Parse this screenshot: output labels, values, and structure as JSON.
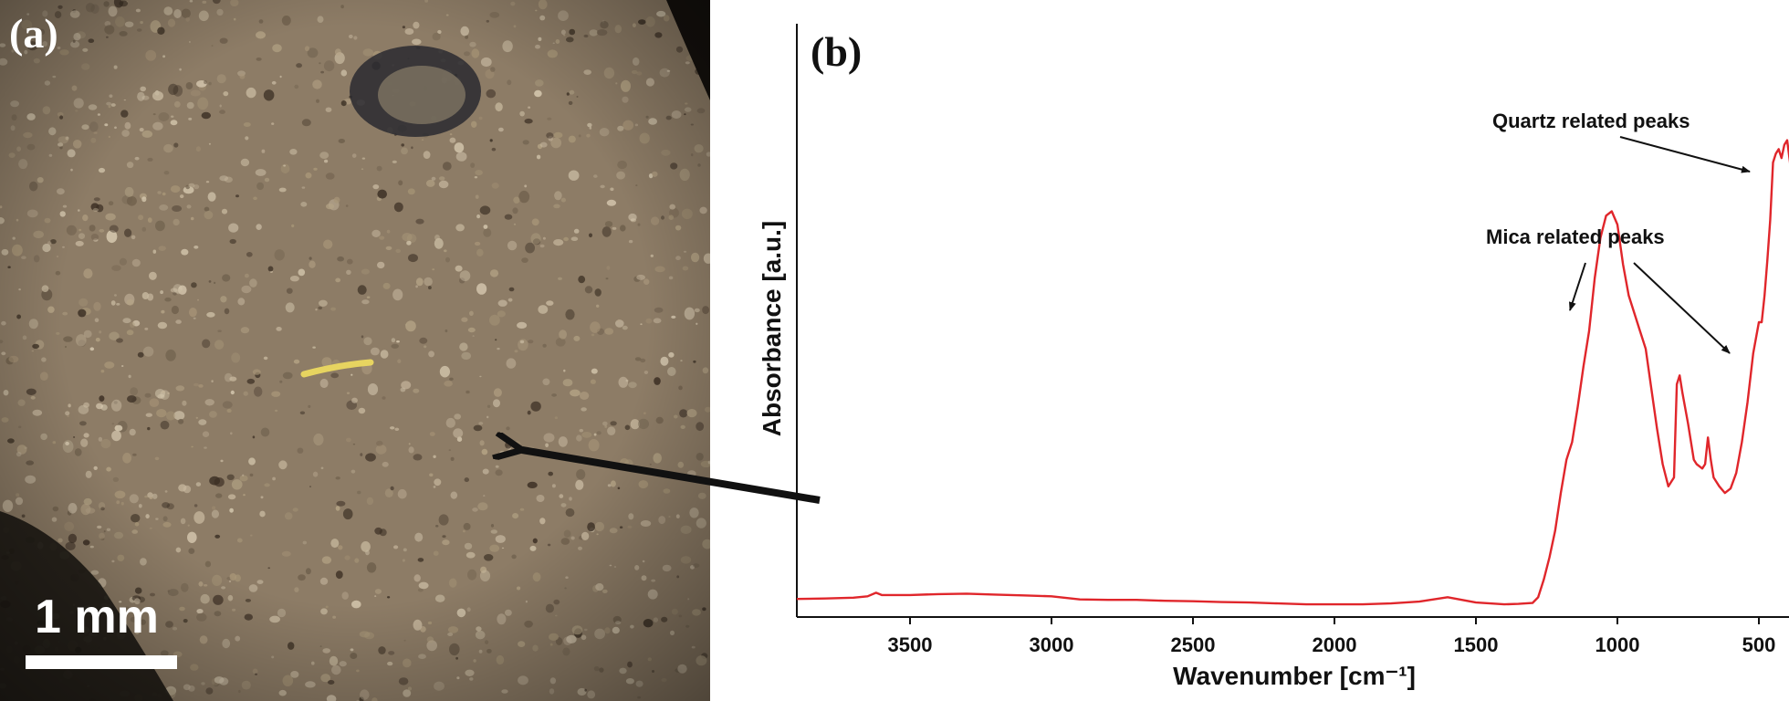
{
  "panels": {
    "a_label": "(a)",
    "b_label": "(b)"
  },
  "photo": {
    "scale_bar_label": "1 mm",
    "colors": {
      "base": "#8d7c66",
      "grain_light": "#c6b79e",
      "grain_dark": "#3b2f24",
      "fiber": "#e7d460"
    }
  },
  "chart_data": {
    "type": "line",
    "xlabel": "Wavenumber [cm⁻¹]",
    "ylabel": "Absorbance [a.u.]",
    "x_reversed": true,
    "xlim": [
      3900,
      400
    ],
    "ylim": [
      0,
      1
    ],
    "xticks": [
      3500,
      3000,
      2500,
      2000,
      1500,
      1000,
      500
    ],
    "grid": false,
    "series": [
      {
        "color": "#e0262b",
        "points": [
          [
            3900,
            0.016
          ],
          [
            3800,
            0.017
          ],
          [
            3700,
            0.019
          ],
          [
            3650,
            0.022
          ],
          [
            3620,
            0.03
          ],
          [
            3600,
            0.025
          ],
          [
            3500,
            0.025
          ],
          [
            3400,
            0.027
          ],
          [
            3300,
            0.028
          ],
          [
            3200,
            0.026
          ],
          [
            3100,
            0.024
          ],
          [
            3000,
            0.022
          ],
          [
            2900,
            0.015
          ],
          [
            2800,
            0.014
          ],
          [
            2700,
            0.014
          ],
          [
            2600,
            0.012
          ],
          [
            2500,
            0.011
          ],
          [
            2400,
            0.009
          ],
          [
            2300,
            0.008
          ],
          [
            2200,
            0.006
          ],
          [
            2100,
            0.004
          ],
          [
            2000,
            0.004
          ],
          [
            1900,
            0.004
          ],
          [
            1800,
            0.006
          ],
          [
            1700,
            0.01
          ],
          [
            1650,
            0.015
          ],
          [
            1600,
            0.02
          ],
          [
            1550,
            0.014
          ],
          [
            1500,
            0.008
          ],
          [
            1450,
            0.006
          ],
          [
            1400,
            0.004
          ],
          [
            1350,
            0.005
          ],
          [
            1300,
            0.007
          ],
          [
            1280,
            0.02
          ],
          [
            1260,
            0.06
          ],
          [
            1240,
            0.11
          ],
          [
            1220,
            0.17
          ],
          [
            1200,
            0.255
          ],
          [
            1180,
            0.33
          ],
          [
            1160,
            0.37
          ],
          [
            1140,
            0.45
          ],
          [
            1120,
            0.54
          ],
          [
            1100,
            0.62
          ],
          [
            1080,
            0.74
          ],
          [
            1060,
            0.83
          ],
          [
            1040,
            0.88
          ],
          [
            1020,
            0.89
          ],
          [
            1000,
            0.86
          ],
          [
            980,
            0.77
          ],
          [
            960,
            0.7
          ],
          [
            940,
            0.66
          ],
          [
            920,
            0.62
          ],
          [
            900,
            0.58
          ],
          [
            880,
            0.49
          ],
          [
            860,
            0.4
          ],
          [
            840,
            0.32
          ],
          [
            820,
            0.27
          ],
          [
            800,
            0.29
          ],
          [
            790,
            0.5
          ],
          [
            780,
            0.52
          ],
          [
            770,
            0.48
          ],
          [
            750,
            0.41
          ],
          [
            730,
            0.33
          ],
          [
            720,
            0.32
          ],
          [
            700,
            0.31
          ],
          [
            690,
            0.32
          ],
          [
            680,
            0.38
          ],
          [
            670,
            0.33
          ],
          [
            660,
            0.29
          ],
          [
            640,
            0.27
          ],
          [
            620,
            0.255
          ],
          [
            600,
            0.265
          ],
          [
            580,
            0.3
          ],
          [
            560,
            0.37
          ],
          [
            540,
            0.46
          ],
          [
            520,
            0.57
          ],
          [
            500,
            0.64
          ],
          [
            490,
            0.64
          ],
          [
            480,
            0.7
          ],
          [
            470,
            0.78
          ],
          [
            460,
            0.87
          ],
          [
            450,
            1.0
          ],
          [
            440,
            1.02
          ],
          [
            430,
            1.03
          ],
          [
            420,
            1.01
          ],
          [
            410,
            1.04
          ],
          [
            400,
            1.05
          ],
          [
            390,
            1.0
          ],
          [
            380,
            0.9
          ]
        ]
      }
    ],
    "annotations": [
      {
        "text": "Quartz related peaks"
      },
      {
        "text": "Mica related peaks"
      }
    ]
  }
}
